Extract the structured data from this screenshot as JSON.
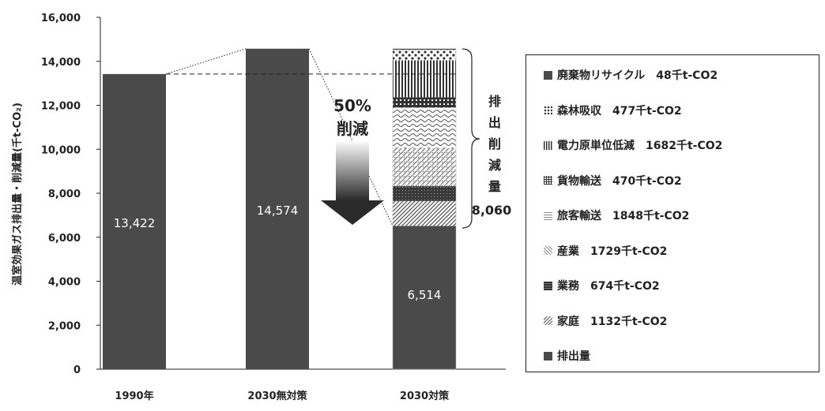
{
  "chart_data": {
    "type": "bar",
    "ylabel": "温室効果ガス排出量・削減量(千t-CO₂)",
    "ylim": [
      0,
      16000
    ],
    "yticks": [
      "0",
      "2,000",
      "4,000",
      "6,000",
      "8,000",
      "10,000",
      "12,000",
      "14,000",
      "16,000"
    ],
    "categories": [
      "1990年",
      "2030無対策",
      "2030対策"
    ],
    "bars": [
      {
        "category": "1990年",
        "value": 13422,
        "label": "13,422"
      },
      {
        "category": "2030無対策",
        "value": 14574,
        "label": "14,574"
      }
    ],
    "stacked": {
      "category": "2030対策",
      "base": {
        "name": "排出量",
        "value": 6514,
        "label": "6,514"
      },
      "segments": [
        {
          "name": "家庭",
          "value": 1132
        },
        {
          "name": "業務",
          "value": 674
        },
        {
          "name": "産業",
          "value": 1729
        },
        {
          "name": "旅客輸送",
          "value": 1848
        },
        {
          "name": "貨物輸送",
          "value": 470
        },
        {
          "name": "電力原単位低減",
          "value": 1682
        },
        {
          "name": "森林吸収",
          "value": 477
        },
        {
          "name": "廃棄物リサイクル",
          "value": 48
        }
      ]
    },
    "annotations": {
      "reduction_rate": "50%",
      "reduction_word": "削減",
      "brace_text": [
        "排",
        "出",
        "削",
        "減",
        "量"
      ],
      "brace_value": "8,060"
    },
    "legend": {
      "placement": "right",
      "items": [
        {
          "text": "廃棄物リサイクル　48千t-CO2",
          "pattern": "solid"
        },
        {
          "text": "森林吸収　477千t-CO2",
          "pattern": "dots"
        },
        {
          "text": "電力原単位低減　1682千t-CO2",
          "pattern": "vlines"
        },
        {
          "text": "貨物輸送　470千t-CO2",
          "pattern": "grid"
        },
        {
          "text": "旅客輸送　1848千t-CO2",
          "pattern": "wave"
        },
        {
          "text": "産業　1729千t-CO2",
          "pattern": "diag-dots"
        },
        {
          "text": "業務　674千t-CO2",
          "pattern": "dense"
        },
        {
          "text": "家庭　1132千t-CO2",
          "pattern": "diag"
        },
        {
          "text": "排出量",
          "pattern": "solid"
        }
      ]
    },
    "colors": {
      "bar": "#4a4a4a",
      "axis": "#222222"
    }
  }
}
